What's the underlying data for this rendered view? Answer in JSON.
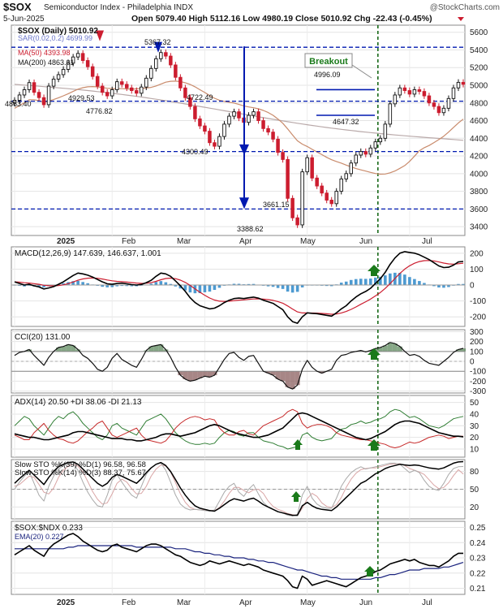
{
  "header": {
    "symbol": "$SOX",
    "name": "Semiconductor Index - Philadelphia INDX",
    "watermark": "@StockCharts.com",
    "date": "5-Jun-2025",
    "ohlc": "Open 5079.40  High 5112.16  Low 4980.19  Close 5010.92  Chg -22.43 (-0.45%)"
  },
  "colors": {
    "up": "#111111",
    "down": "#cc1d2f",
    "ma50": "#c98b6c",
    "ma200": "#b9a9a9",
    "level": "#0019b0",
    "event": "#1a6b1a",
    "arrow": "#1a7a1a",
    "macd_hist": "#4d9ad1"
  },
  "chart_data": [
    {
      "panel": "price",
      "type": "candlestick",
      "legend": [
        "$SOX (Daily) 5010.92",
        "SAR(0.02,0.2) 4699.99",
        "MA(50) 4393.98",
        "MA(200) 4863.01"
      ],
      "y_ticks": [
        3400,
        3600,
        3800,
        4000,
        4200,
        4400,
        4600,
        4800,
        5000,
        5200,
        5400,
        5600
      ],
      "ylim": [
        3300,
        5680
      ],
      "x_labels": [
        "2025",
        "Feb",
        "Mar",
        "Apr",
        "May",
        "Jun",
        "Jul"
      ],
      "annotations": [
        "4863.40",
        "4929.53",
        "4776.82",
        "5367.32",
        "4722.49",
        "4300.49",
        "3388.62",
        "3661.15",
        "4996.09",
        "4647.32"
      ],
      "breakout_label": "Breakout",
      "levels": [
        5430,
        4820,
        4250,
        3600
      ],
      "closes": [
        4830,
        4890,
        4950,
        5030,
        4920,
        4860,
        4780,
        4990,
        5070,
        5120,
        5180,
        5250,
        5320,
        5360,
        5280,
        5210,
        5100,
        4990,
        4920,
        4880,
        4950,
        5040,
        5010,
        4970,
        4940,
        4910,
        4980,
        5080,
        5190,
        5300,
        5370,
        5330,
        5230,
        5090,
        4970,
        4860,
        4760,
        4620,
        4540,
        4480,
        4350,
        4310,
        4420,
        4560,
        4650,
        4700,
        4630,
        4580,
        4660,
        4700,
        4600,
        4510,
        4470,
        4390,
        4240,
        4160,
        3720,
        3500,
        3420,
        4020,
        4180,
        3950,
        3860,
        3780,
        3700,
        3660,
        3800,
        3940,
        4000,
        4120,
        4210,
        4250,
        4220,
        4290,
        4360,
        4400,
        4560,
        4790,
        4890,
        4970,
        4940,
        4900,
        4950,
        4930,
        4880,
        4800,
        4760,
        4690,
        4740,
        4850,
        4970,
        5033,
        5011
      ]
    },
    {
      "panel": "macd",
      "type": "line",
      "legend": "MACD(12,26,9) 147.639, 146.637, 1.001",
      "y_ticks": [
        200,
        100,
        0,
        -100,
        -200
      ],
      "ylim": [
        -260,
        240
      ],
      "values": [
        20,
        10,
        0,
        5,
        -5,
        -12,
        -25,
        -18,
        -10,
        5,
        20,
        40,
        60,
        75,
        70,
        62,
        50,
        35,
        20,
        8,
        5,
        10,
        12,
        8,
        3,
        0,
        4,
        15,
        30,
        55,
        75,
        70,
        55,
        25,
        -5,
        -40,
        -80,
        -110,
        -130,
        -140,
        -150,
        -145,
        -130,
        -110,
        -95,
        -85,
        -82,
        -85,
        -80,
        -76,
        -82,
        -95,
        -105,
        -115,
        -135,
        -155,
        -200,
        -230,
        -240,
        -200,
        -175,
        -178,
        -180,
        -185,
        -190,
        -195,
        -175,
        -150,
        -130,
        -100,
        -75,
        -55,
        -40,
        -20,
        10,
        40,
        80,
        130,
        170,
        200,
        210,
        205,
        200,
        190,
        175,
        160,
        140,
        120,
        110,
        112,
        125,
        145,
        148
      ]
    },
    {
      "panel": "cci",
      "type": "line",
      "legend": "CCI(20) 131.00",
      "y_ticks": [
        300,
        200,
        100,
        0,
        -100,
        -200,
        -300
      ],
      "ylim": [
        -320,
        320
      ],
      "values": [
        60,
        90,
        100,
        120,
        60,
        10,
        -40,
        40,
        100,
        140,
        150,
        170,
        160,
        120,
        60,
        30,
        -20,
        -80,
        -100,
        -60,
        30,
        80,
        20,
        -10,
        -40,
        -60,
        20,
        110,
        150,
        160,
        170,
        120,
        40,
        -60,
        -140,
        -180,
        -200,
        -190,
        -170,
        -150,
        -160,
        -140,
        -60,
        20,
        80,
        90,
        40,
        10,
        50,
        60,
        -20,
        -100,
        -120,
        -140,
        -180,
        -200,
        -260,
        -280,
        -240,
        -80,
        10,
        -60,
        -100,
        -120,
        -100,
        -80,
        10,
        60,
        70,
        90,
        100,
        110,
        95,
        110,
        130,
        140,
        160,
        190,
        180,
        150,
        100,
        60,
        70,
        50,
        10,
        -20,
        -30,
        -40,
        0,
        40,
        90,
        120,
        131
      ]
    },
    {
      "panel": "adx",
      "type": "line",
      "legend": "ADX(14) 20.50 +DI 38.06 -DI 21.13",
      "y_ticks": [
        50,
        40,
        30,
        20,
        10
      ],
      "ylim": [
        3,
        56
      ],
      "adx": [
        23,
        22,
        21,
        20,
        20,
        19,
        18,
        18,
        19,
        20,
        21,
        22,
        24,
        25,
        25,
        24,
        23,
        22,
        21,
        20,
        19,
        19,
        19,
        18,
        18,
        17,
        17,
        18,
        19,
        20,
        22,
        23,
        23,
        22,
        21,
        22,
        23,
        24,
        26,
        28,
        30,
        31,
        30,
        28,
        26,
        24,
        23,
        22,
        21,
        20,
        20,
        21,
        22,
        24,
        26,
        28,
        32,
        36,
        40,
        41,
        40,
        38,
        36,
        34,
        32,
        30,
        28,
        26,
        24,
        22,
        20,
        19,
        18,
        19,
        21,
        23,
        25,
        28,
        31,
        33,
        34,
        34,
        33,
        32,
        30,
        28,
        26,
        24,
        23,
        22,
        21,
        21,
        20.5
      ],
      "plus_di": [
        30,
        34,
        38,
        36,
        30,
        26,
        22,
        28,
        34,
        38,
        36,
        40,
        42,
        38,
        32,
        28,
        24,
        20,
        18,
        22,
        30,
        32,
        28,
        26,
        24,
        22,
        28,
        34,
        36,
        38,
        40,
        36,
        30,
        24,
        20,
        17,
        15,
        14,
        14,
        15,
        14,
        15,
        20,
        24,
        26,
        25,
        22,
        21,
        24,
        24,
        20,
        17,
        16,
        15,
        13,
        12,
        10,
        11,
        12,
        22,
        24,
        20,
        18,
        17,
        18,
        19,
        24,
        27,
        28,
        31,
        32,
        34,
        32,
        33,
        35,
        36,
        38,
        42,
        44,
        43,
        40,
        37,
        38,
        36,
        33,
        30,
        29,
        28,
        30,
        33,
        36,
        37,
        38
      ],
      "minus_di": [
        22,
        20,
        18,
        18,
        24,
        28,
        32,
        26,
        22,
        19,
        18,
        16,
        15,
        17,
        21,
        25,
        28,
        32,
        34,
        28,
        22,
        20,
        22,
        24,
        26,
        28,
        22,
        18,
        17,
        16,
        15,
        17,
        22,
        28,
        32,
        35,
        37,
        38,
        37,
        35,
        36,
        35,
        28,
        24,
        22,
        22,
        25,
        26,
        23,
        22,
        26,
        30,
        32,
        34,
        36,
        38,
        42,
        44,
        42,
        32,
        28,
        30,
        31,
        31,
        30,
        28,
        24,
        22,
        21,
        20,
        19,
        18,
        18,
        17,
        16,
        15,
        14,
        12,
        11,
        12,
        14,
        16,
        15,
        16,
        18,
        20,
        21,
        22,
        21,
        19,
        20,
        21,
        21
      ]
    },
    {
      "panel": "stochastic",
      "type": "line",
      "legend": [
        "Slow STO %K(39) %D(1) 96.58, 96.58",
        "Slow STO %K(14) %D(3) 88.37, 75.67"
      ],
      "y_ticks": [
        80,
        50,
        20
      ],
      "ylim": [
        0,
        100
      ],
      "k39": [
        60,
        68,
        75,
        82,
        74,
        66,
        58,
        70,
        80,
        88,
        92,
        95,
        96,
        92,
        84,
        76,
        68,
        60,
        55,
        60,
        70,
        75,
        72,
        68,
        64,
        60,
        68,
        78,
        86,
        92,
        95,
        90,
        80,
        66,
        52,
        40,
        30,
        22,
        18,
        16,
        14,
        13,
        18,
        24,
        30,
        34,
        32,
        30,
        33,
        35,
        30,
        24,
        20,
        16,
        12,
        10,
        8,
        6,
        6,
        22,
        28,
        22,
        18,
        16,
        15,
        14,
        20,
        28,
        36,
        44,
        52,
        60,
        64,
        70,
        76,
        80,
        85,
        88,
        90,
        92,
        91,
        90,
        91,
        90,
        88,
        86,
        85,
        84,
        86,
        90,
        94,
        96,
        96.58
      ],
      "k14": [
        50,
        62,
        72,
        80,
        60,
        40,
        30,
        55,
        72,
        84,
        90,
        93,
        92,
        82,
        62,
        45,
        32,
        22,
        20,
        40,
        65,
        75,
        62,
        50,
        40,
        35,
        55,
        75,
        86,
        92,
        94,
        82,
        62,
        40,
        25,
        18,
        15,
        16,
        15,
        14,
        13,
        15,
        30,
        45,
        55,
        60,
        45,
        38,
        50,
        58,
        42,
        28,
        20,
        16,
        12,
        10,
        6,
        5,
        8,
        40,
        55,
        35,
        25,
        20,
        18,
        18,
        35,
        55,
        68,
        78,
        84,
        88,
        84,
        86,
        88,
        90,
        92,
        94,
        94,
        92,
        85,
        78,
        82,
        78,
        65,
        55,
        50,
        48,
        60,
        75,
        85,
        88,
        88.37
      ],
      "d14": [
        55,
        58,
        65,
        72,
        70,
        58,
        45,
        42,
        52,
        70,
        82,
        89,
        92,
        89,
        79,
        63,
        46,
        33,
        25,
        27,
        42,
        60,
        67,
        62,
        51,
        42,
        43,
        55,
        72,
        84,
        91,
        89,
        79,
        61,
        42,
        28,
        19,
        16,
        15,
        15,
        14,
        14,
        19,
        30,
        43,
        53,
        53,
        48,
        44,
        49,
        50,
        43,
        30,
        21,
        16,
        13,
        9,
        7,
        6,
        18,
        34,
        43,
        38,
        27,
        21,
        19,
        24,
        36,
        53,
        67,
        77,
        83,
        85,
        86,
        86,
        88,
        90,
        92,
        93,
        93,
        90,
        85,
        82,
        79,
        75,
        66,
        57,
        51,
        53,
        61,
        73,
        83,
        75.67
      ]
    },
    {
      "panel": "ratio",
      "type": "line",
      "legend": [
        "$SOX:$NDX 0.233",
        "EMA(20) 0.227"
      ],
      "y_ticks": [
        0.25,
        0.24,
        0.23,
        0.22,
        0.21
      ],
      "ylim": [
        0.206,
        0.254
      ],
      "values": [
        0.232,
        0.234,
        0.236,
        0.238,
        0.235,
        0.233,
        0.231,
        0.236,
        0.239,
        0.241,
        0.243,
        0.245,
        0.246,
        0.244,
        0.241,
        0.239,
        0.237,
        0.235,
        0.234,
        0.235,
        0.238,
        0.239,
        0.237,
        0.236,
        0.235,
        0.234,
        0.236,
        0.238,
        0.239,
        0.239,
        0.238,
        0.236,
        0.234,
        0.232,
        0.231,
        0.229,
        0.227,
        0.226,
        0.225,
        0.226,
        0.228,
        0.227,
        0.226,
        0.227,
        0.228,
        0.227,
        0.226,
        0.225,
        0.226,
        0.225,
        0.224,
        0.222,
        0.221,
        0.22,
        0.219,
        0.218,
        0.215,
        0.211,
        0.21,
        0.218,
        0.216,
        0.212,
        0.213,
        0.214,
        0.215,
        0.214,
        0.213,
        0.212,
        0.211,
        0.213,
        0.215,
        0.217,
        0.218,
        0.219,
        0.221,
        0.222,
        0.224,
        0.226,
        0.227,
        0.228,
        0.229,
        0.228,
        0.229,
        0.227,
        0.226,
        0.225,
        0.225,
        0.224,
        0.226,
        0.228,
        0.231,
        0.233,
        0.233
      ],
      "ema": [
        0.236,
        0.236,
        0.236,
        0.236,
        0.236,
        0.236,
        0.236,
        0.236,
        0.236,
        0.236,
        0.236,
        0.237,
        0.237,
        0.238,
        0.238,
        0.238,
        0.238,
        0.238,
        0.238,
        0.238,
        0.238,
        0.238,
        0.238,
        0.238,
        0.238,
        0.237,
        0.237,
        0.237,
        0.237,
        0.237,
        0.237,
        0.237,
        0.237,
        0.236,
        0.236,
        0.236,
        0.235,
        0.234,
        0.234,
        0.233,
        0.233,
        0.232,
        0.232,
        0.231,
        0.231,
        0.23,
        0.23,
        0.23,
        0.229,
        0.229,
        0.228,
        0.228,
        0.227,
        0.227,
        0.226,
        0.225,
        0.224,
        0.223,
        0.222,
        0.222,
        0.221,
        0.22,
        0.219,
        0.218,
        0.218,
        0.217,
        0.217,
        0.216,
        0.216,
        0.216,
        0.216,
        0.216,
        0.216,
        0.216,
        0.217,
        0.217,
        0.218,
        0.219,
        0.219,
        0.22,
        0.221,
        0.222,
        0.222,
        0.222,
        0.223,
        0.223,
        0.223,
        0.223,
        0.224,
        0.224,
        0.225,
        0.226,
        0.227
      ]
    }
  ]
}
